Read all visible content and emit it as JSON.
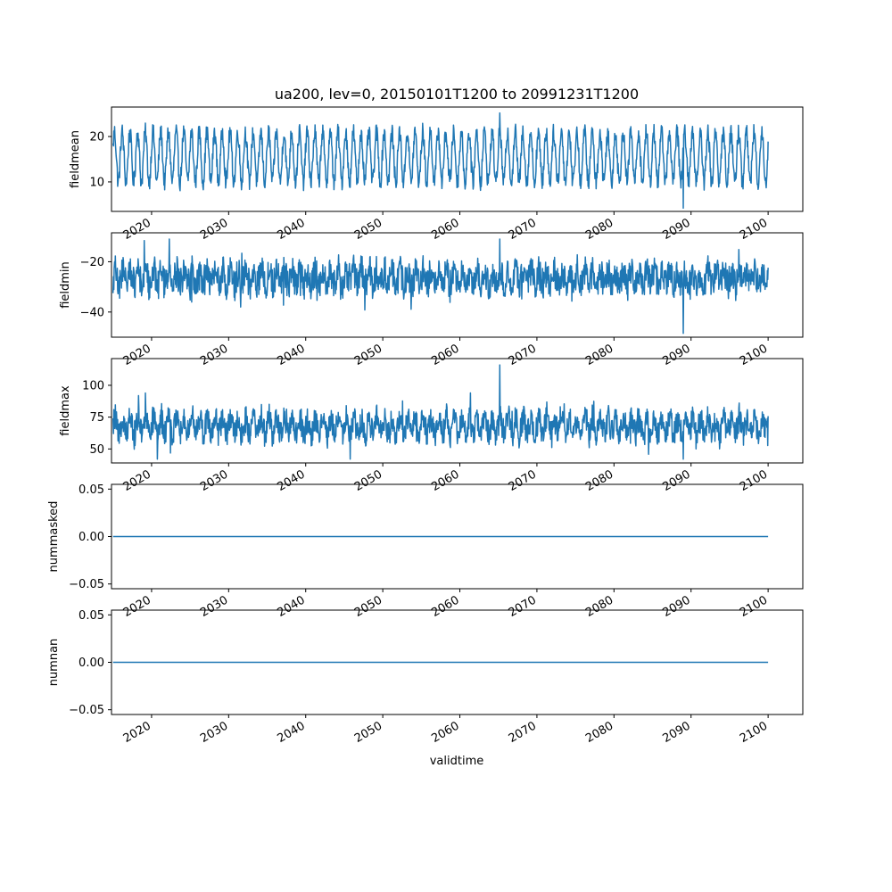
{
  "title": "ua200, lev=0, 20150101T1200 to 20991231T1200",
  "xlabel": "validtime",
  "line_color": "#1f77b4",
  "chart_data": [
    {
      "type": "line",
      "ylabel": "fieldmean",
      "xlim": [
        2014.8,
        2104.5
      ],
      "ylim": [
        3.5,
        26.5
      ],
      "xticks": [
        2020,
        2030,
        2040,
        2050,
        2060,
        2070,
        2080,
        2090,
        2100
      ],
      "xtick_labels": [
        "2020",
        "2030",
        "2040",
        "2050",
        "2060",
        "2070",
        "2080",
        "2090",
        "2100"
      ],
      "yticks": [
        10,
        20
      ],
      "ytick_labels": [
        "10",
        "20"
      ],
      "series": [
        {
          "x_range": [
            2015.0,
            2100.0
          ],
          "pattern": "annual_cycle",
          "center": 15.5,
          "amplitude": 5.5,
          "noise": 2.0,
          "min": 4.2,
          "max": 25.2
        }
      ]
    },
    {
      "type": "line",
      "ylabel": "fieldmin",
      "xlim": [
        2014.8,
        2104.5
      ],
      "ylim": [
        -50,
        -8.5
      ],
      "xticks": [
        2020,
        2030,
        2040,
        2050,
        2060,
        2070,
        2080,
        2090,
        2100
      ],
      "xtick_labels": [
        "2020",
        "2030",
        "2040",
        "2050",
        "2060",
        "2070",
        "2080",
        "2090",
        "2100"
      ],
      "yticks": [
        -40,
        -20
      ],
      "ytick_labels": [
        "−40",
        "−20"
      ],
      "series": [
        {
          "x_range": [
            2015.0,
            2100.0
          ],
          "pattern": "noisy_band",
          "center": -26.5,
          "amplitude": 4.0,
          "noise": 5.5,
          "min": -48.5,
          "max": -11.0
        }
      ]
    },
    {
      "type": "line",
      "ylabel": "fieldmax",
      "xlim": [
        2014.8,
        2104.5
      ],
      "ylim": [
        39,
        121
      ],
      "xticks": [
        2020,
        2030,
        2040,
        2050,
        2060,
        2070,
        2080,
        2090,
        2100
      ],
      "xtick_labels": [
        "2020",
        "2030",
        "2040",
        "2050",
        "2060",
        "2070",
        "2080",
        "2090",
        "2100"
      ],
      "yticks": [
        50,
        75,
        100
      ],
      "ytick_labels": [
        "50",
        "75",
        "100"
      ],
      "series": [
        {
          "x_range": [
            2015.0,
            2100.0
          ],
          "pattern": "noisy_band",
          "center": 68.0,
          "amplitude": 9.0,
          "noise": 9.0,
          "min": 42.0,
          "max": 116.0
        }
      ]
    },
    {
      "type": "line",
      "ylabel": "nummasked",
      "xlim": [
        2014.8,
        2104.5
      ],
      "ylim": [
        -0.055,
        0.055
      ],
      "xticks": [
        2020,
        2030,
        2040,
        2050,
        2060,
        2070,
        2080,
        2090,
        2100
      ],
      "xtick_labels": [
        "2020",
        "2030",
        "2040",
        "2050",
        "2060",
        "2070",
        "2080",
        "2090",
        "2100"
      ],
      "yticks": [
        -0.05,
        0.0,
        0.05
      ],
      "ytick_labels": [
        "−0.05",
        "0.00",
        "0.05"
      ],
      "series": [
        {
          "x": [
            2015.0,
            2100.0
          ],
          "y": [
            0,
            0
          ]
        }
      ]
    },
    {
      "type": "line",
      "ylabel": "numnan",
      "xlim": [
        2014.8,
        2104.5
      ],
      "ylim": [
        -0.055,
        0.055
      ],
      "xticks": [
        2020,
        2030,
        2040,
        2050,
        2060,
        2070,
        2080,
        2090,
        2100
      ],
      "xtick_labels": [
        "2020",
        "2030",
        "2040",
        "2050",
        "2060",
        "2070",
        "2080",
        "2090",
        "2100"
      ],
      "yticks": [
        -0.05,
        0.0,
        0.05
      ],
      "ytick_labels": [
        "−0.05",
        "0.00",
        "0.05"
      ],
      "series": [
        {
          "x": [
            2015.0,
            2100.0
          ],
          "y": [
            0,
            0
          ]
        }
      ]
    }
  ]
}
